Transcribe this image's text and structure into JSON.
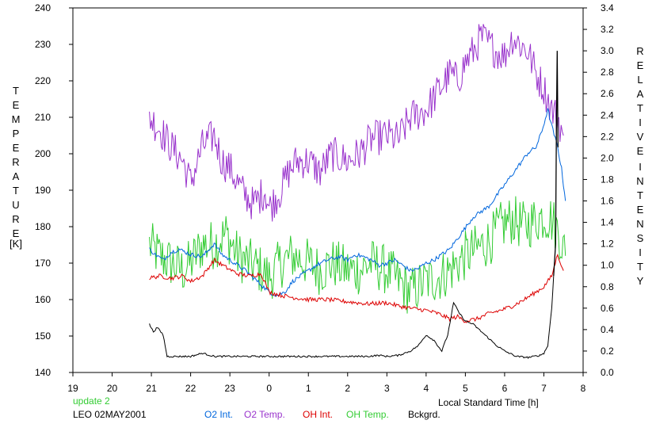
{
  "chart_data": {
    "type": "line",
    "title": "",
    "station_label": "LEO 02MAY2001",
    "status_text": "update 2",
    "xlabel": "Local Standard Time [h]",
    "ylabel_left": [
      "T",
      "E",
      "M",
      "P",
      "E",
      "R",
      "A",
      "T",
      "U",
      "R",
      "E"
    ],
    "ylabel_left_unit": "[K]",
    "ylabel_right_1": [
      "R",
      "E",
      "L",
      "A",
      "T",
      "I",
      "V",
      "E"
    ],
    "ylabel_right_2": [
      "I",
      "N",
      "T",
      "E",
      "N",
      "S",
      "I",
      "T",
      "Y"
    ],
    "xlim": [
      0,
      13
    ],
    "x_tick_labels": [
      "19",
      "20",
      "21",
      "22",
      "23",
      "0",
      "1",
      "2",
      "3",
      "4",
      "5",
      "6",
      "7",
      "8"
    ],
    "ylim_left": [
      140,
      240
    ],
    "y_left_ticks": [
      140,
      150,
      160,
      170,
      180,
      190,
      200,
      210,
      220,
      230,
      240
    ],
    "ylim_right": [
      0.0,
      3.4
    ],
    "y_right_ticks": [
      "0.0",
      "0.2",
      "0.4",
      "0.6",
      "0.8",
      "1.0",
      "1.2",
      "1.4",
      "1.6",
      "1.8",
      "2.0",
      "2.2",
      "2.4",
      "2.6",
      "2.8",
      "3.0",
      "3.2",
      "3.4"
    ],
    "grid": false,
    "legend_placement": "bottom",
    "series": [
      {
        "name": "O2 Int.",
        "color": "#0066dd",
        "axis": "right",
        "jitter": 0.02,
        "x": [
          1.95,
          2.1,
          2.3,
          2.5,
          2.7,
          3.0,
          3.3,
          3.6,
          3.8,
          4.0,
          4.2,
          4.4,
          4.7,
          5.0,
          5.2,
          5.4,
          5.6,
          5.8,
          6.0,
          6.2,
          6.5,
          6.8,
          7.0,
          7.2,
          7.4,
          7.6,
          7.8,
          8.0,
          8.2,
          8.4,
          8.6,
          8.8,
          9.0,
          9.2,
          9.4,
          9.6,
          9.8,
          10.0,
          10.2,
          10.4,
          10.6,
          10.8,
          11.0,
          11.2,
          11.4,
          11.6,
          11.8,
          11.95,
          12.1,
          12.2,
          12.35,
          12.45,
          12.55
        ],
        "y": [
          1.15,
          1.1,
          1.05,
          1.12,
          1.15,
          1.1,
          1.08,
          1.2,
          1.1,
          1.05,
          1.0,
          0.95,
          0.85,
          0.75,
          0.72,
          0.75,
          0.85,
          0.9,
          0.95,
          1.0,
          1.05,
          1.08,
          1.05,
          1.1,
          1.08,
          1.05,
          1.0,
          1.02,
          1.05,
          1.0,
          0.95,
          0.97,
          1.02,
          1.05,
          1.1,
          1.15,
          1.25,
          1.35,
          1.45,
          1.5,
          1.55,
          1.65,
          1.75,
          1.85,
          1.95,
          2.05,
          2.1,
          2.25,
          2.45,
          2.3,
          2.1,
          1.9,
          1.6
        ]
      },
      {
        "name": "O2 Temp.",
        "color": "#9933cc",
        "axis": "left",
        "jitter": 5,
        "x": [
          1.95,
          2.2,
          2.5,
          2.8,
          3.0,
          3.3,
          3.6,
          3.8,
          4.0,
          4.3,
          4.6,
          4.9,
          5.0,
          5.3,
          5.5,
          5.7,
          6.0,
          6.3,
          6.6,
          7.0,
          7.3,
          7.6,
          8.0,
          8.3,
          8.6,
          9.0,
          9.3,
          9.6,
          9.8,
          10.0,
          10.2,
          10.4,
          10.6,
          10.8,
          11.0,
          11.2,
          11.4,
          11.6,
          11.8,
          12.0,
          12.2,
          12.35,
          12.5
        ],
        "y": [
          210,
          207,
          202,
          198,
          192,
          202,
          205,
          198,
          196,
          190,
          186,
          190,
          185,
          190,
          195,
          198,
          198,
          195,
          200,
          198,
          200,
          204,
          205,
          204,
          210,
          212,
          217,
          222,
          220,
          225,
          228,
          232,
          230,
          228,
          227,
          232,
          230,
          228,
          222,
          218,
          212,
          210,
          205
        ]
      },
      {
        "name": "OH Int.",
        "color": "#dd0000",
        "axis": "right",
        "jitter": 0.02,
        "x": [
          1.95,
          2.2,
          2.5,
          2.8,
          3.0,
          3.3,
          3.6,
          3.9,
          4.2,
          4.5,
          4.8,
          5.0,
          5.3,
          5.6,
          6.0,
          6.5,
          7.0,
          7.5,
          8.0,
          8.3,
          8.6,
          9.0,
          9.3,
          9.6,
          9.8,
          10.0,
          10.3,
          10.6,
          10.9,
          11.2,
          11.5,
          11.8,
          12.0,
          12.2,
          12.35,
          12.5
        ],
        "y": [
          0.88,
          0.9,
          0.88,
          0.9,
          0.85,
          0.9,
          1.05,
          0.98,
          0.92,
          0.9,
          0.92,
          0.75,
          0.72,
          0.7,
          0.68,
          0.68,
          0.66,
          0.64,
          0.65,
          0.62,
          0.6,
          0.58,
          0.55,
          0.5,
          0.52,
          0.48,
          0.5,
          0.55,
          0.58,
          0.62,
          0.68,
          0.75,
          0.8,
          0.9,
          1.1,
          0.95
        ]
      },
      {
        "name": "OH Temp.",
        "color": "#33cc33",
        "axis": "left",
        "jitter": 7,
        "x": [
          1.95,
          2.2,
          2.5,
          2.8,
          3.0,
          3.3,
          3.6,
          3.9,
          4.2,
          4.5,
          4.8,
          5.0,
          5.3,
          5.6,
          6.0,
          6.3,
          6.6,
          7.0,
          7.3,
          7.6,
          8.0,
          8.3,
          8.6,
          9.0,
          9.3,
          9.6,
          9.8,
          10.0,
          10.3,
          10.6,
          10.9,
          11.2,
          11.5,
          11.8,
          12.0,
          12.2,
          12.4,
          12.55
        ],
        "y": [
          175,
          172,
          170,
          168,
          170,
          175,
          175,
          178,
          172,
          170,
          168,
          166,
          170,
          172,
          170,
          168,
          170,
          168,
          168,
          170,
          168,
          165,
          162,
          165,
          166,
          168,
          170,
          172,
          174,
          176,
          180,
          182,
          180,
          182,
          183,
          182,
          178,
          172
        ]
      },
      {
        "name": "Bckgrd.",
        "color": "#000000",
        "axis": "right",
        "jitter": 0.008,
        "x": [
          1.95,
          2.05,
          2.15,
          2.3,
          2.4,
          2.5,
          2.7,
          3.0,
          3.3,
          3.6,
          4.0,
          4.5,
          5.0,
          5.5,
          6.0,
          6.5,
          7.0,
          7.5,
          7.8,
          8.0,
          8.3,
          8.6,
          8.8,
          9.0,
          9.2,
          9.4,
          9.55,
          9.7,
          9.85,
          10.0,
          10.2,
          10.5,
          10.8,
          11.0,
          11.3,
          11.6,
          11.9,
          12.0,
          12.1,
          12.2,
          12.25
        ],
        "y": [
          0.45,
          0.38,
          0.42,
          0.35,
          0.15,
          0.15,
          0.15,
          0.15,
          0.18,
          0.15,
          0.15,
          0.15,
          0.15,
          0.15,
          0.15,
          0.15,
          0.15,
          0.15,
          0.16,
          0.15,
          0.16,
          0.2,
          0.25,
          0.35,
          0.3,
          0.2,
          0.35,
          0.65,
          0.55,
          0.48,
          0.45,
          0.35,
          0.25,
          0.2,
          0.15,
          0.14,
          0.16,
          0.18,
          0.25,
          0.6,
          0.9
        ]
      }
    ],
    "extra_black_spike": {
      "x": [
        12.25,
        12.3,
        12.32,
        12.34,
        12.36
      ],
      "y": [
        0.9,
        1.2,
        2.3,
        3.0,
        2.1
      ]
    }
  }
}
